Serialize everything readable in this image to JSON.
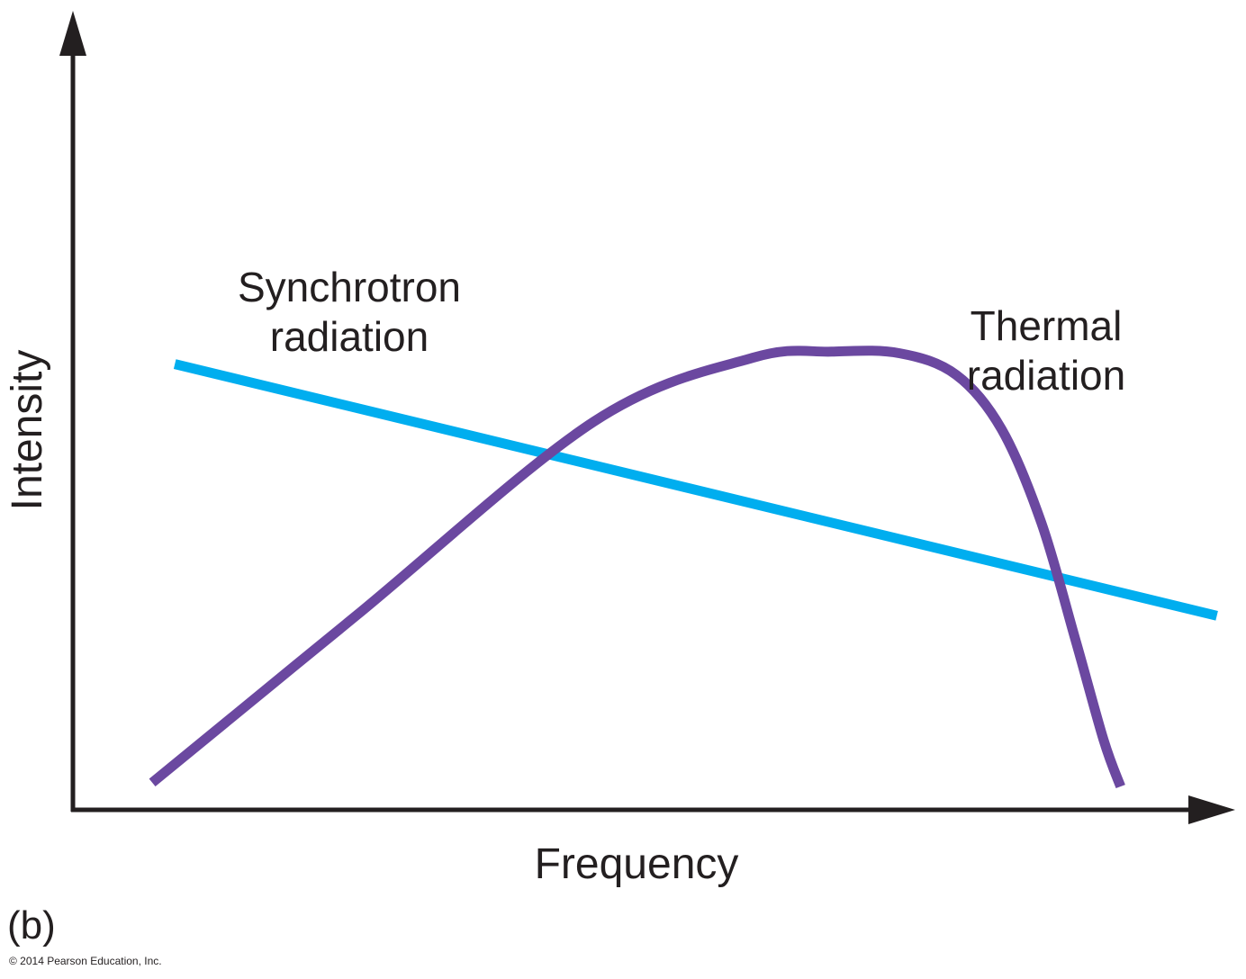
{
  "chart_data": {
    "type": "line",
    "panel": "(b)",
    "xlabel": "Frequency",
    "ylabel": "Intensity",
    "xlim": [
      0,
      10
    ],
    "ylim": [
      0,
      10
    ],
    "ticks": "none",
    "grid": false,
    "series": [
      {
        "name": "Synchrotron radiation",
        "label_lines": [
          "Synchrotron",
          "radiation"
        ],
        "color": "#00aeef",
        "x": [
          0.9,
          10.1
        ],
        "y": [
          5.74,
          2.5
        ]
      },
      {
        "name": "Thermal radiation",
        "label_lines": [
          "Thermal",
          "radiation"
        ],
        "color": "#6b48a0",
        "x": [
          0.7,
          2.5,
          4.6,
          6.0,
          6.7,
          7.3,
          7.8,
          8.2,
          8.55,
          8.85,
          9.1,
          9.25
        ],
        "y": [
          0.35,
          2.5,
          5.0,
          5.82,
          5.9,
          5.88,
          5.6,
          4.9,
          3.7,
          2.2,
          0.9,
          0.3
        ]
      }
    ]
  },
  "credit": "© 2014 Pearson Education, Inc."
}
